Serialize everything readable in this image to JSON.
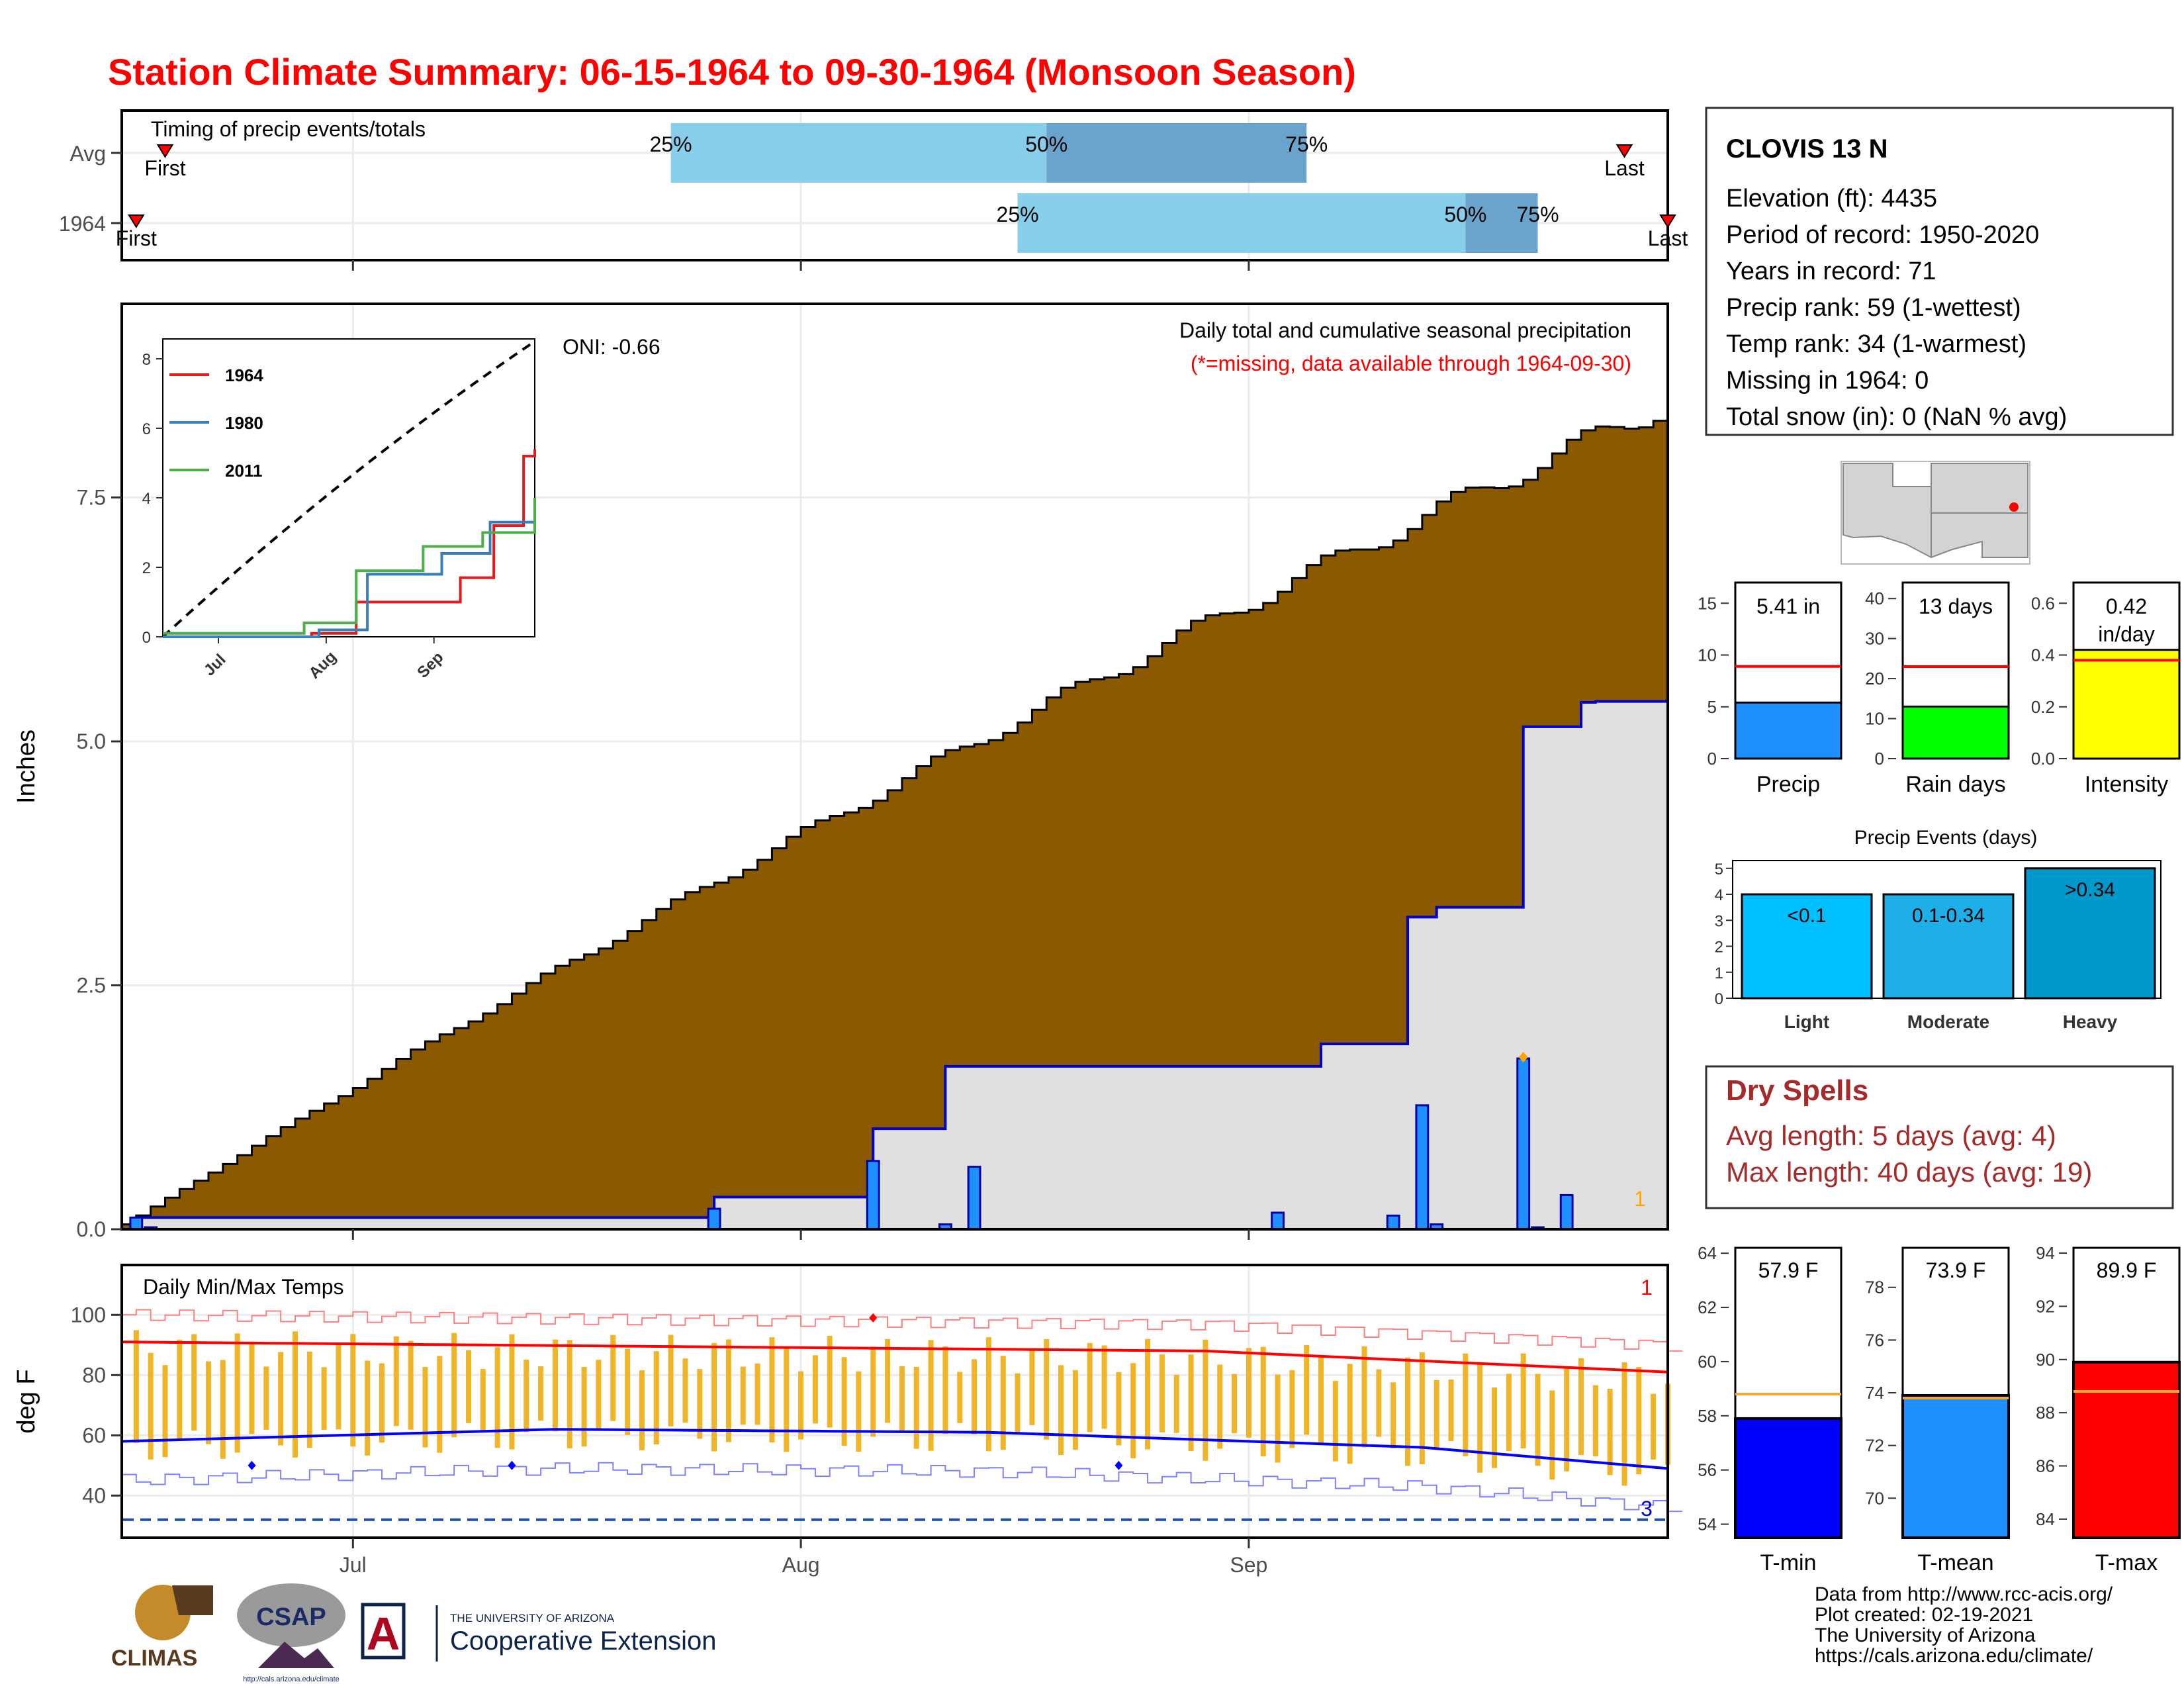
{
  "title": "Station Climate Summary: 06-15-1964 to 09-30-1964 (Monsoon Season)",
  "colors": {
    "title": "#ff0000",
    "precip_fill": "#8b5a00",
    "avg_line": "#0000cc",
    "daily_bar": "#1e90ff",
    "tmax": "#ff0000",
    "tmin": "#0000ff",
    "temp_bar": "#f0b429",
    "q_light": "#87ceeb",
    "q_dark": "#6aa4cc",
    "dry": "#a52a2a",
    "shade": "#e0e0e0"
  },
  "timing": {
    "title": "Timing of precip events/totals",
    "rows": [
      {
        "label": "Avg",
        "first_day": 3,
        "q25_day": 38,
        "q50_day": 64,
        "q75_day": 82,
        "last_day": 104
      },
      {
        "label": "1964",
        "first_day": 1,
        "q25_day": 62,
        "q50_day": 93,
        "q75_day": 98,
        "last_day": 107
      }
    ],
    "first_label": "First",
    "last_label": "Last",
    "q25_label": "25%",
    "q50_label": "50%",
    "q75_label": "75%"
  },
  "main": {
    "caption1": "Daily total and cumulative seasonal precipitation",
    "caption2": "(*=missing, data available through 1964-09-30)",
    "oni": "ONI: -0.66",
    "ylabel": "Inches",
    "ytick_labels": [
      "0.0",
      "2.5",
      "5.0",
      "7.5"
    ],
    "corner_count": "1",
    "month_labels": [
      "Jul",
      "Aug",
      "Sep"
    ]
  },
  "inset": {
    "ytick_labels": [
      "0",
      "2",
      "4",
      "6",
      "8"
    ],
    "xtick_labels": [
      "Jul",
      "Aug",
      "Sep"
    ],
    "legend": [
      {
        "name": "1964",
        "color": "#e41a1c"
      },
      {
        "name": "1980",
        "color": "#377eb8"
      },
      {
        "name": "2011",
        "color": "#4daf4a"
      }
    ]
  },
  "temps": {
    "title": "Daily Min/Max Temps",
    "ylabel": "deg F",
    "ytick_labels": [
      "40",
      "60",
      "80",
      "100"
    ],
    "count_max": "1",
    "count_min": "3",
    "month_labels": [
      "Jul",
      "Aug",
      "Sep"
    ]
  },
  "station": {
    "name": "CLOVIS 13 N",
    "lines": [
      "Elevation (ft): 4435",
      "Period of record: 1950-2020",
      "Years in record: 71",
      "Precip rank: 59 (1-wettest)",
      "Temp rank: 34 (1-warmest)",
      "Missing in 1964: 0",
      "Total snow (in): 0 (NaN % avg)"
    ]
  },
  "summary_bars": [
    {
      "label": "Precip",
      "value_text": "5.41 in",
      "value": 5.41,
      "avg": 8.9,
      "ymax": 17,
      "ticks": [
        "0",
        "5",
        "10",
        "15"
      ],
      "tick_vals": [
        0,
        5,
        10,
        15
      ],
      "color": "#1e90ff"
    },
    {
      "label": "Rain days",
      "value_text": "13 days",
      "value": 13,
      "avg": 23,
      "ymax": 44,
      "ticks": [
        "0",
        "10",
        "20",
        "30",
        "40"
      ],
      "tick_vals": [
        0,
        10,
        20,
        30,
        40
      ],
      "color": "#00ff00"
    },
    {
      "label": "Intensity",
      "value_text": "0.42\nin/day",
      "value": 0.42,
      "avg": 0.38,
      "ymax": 0.68,
      "ticks": [
        "0.0",
        "0.2",
        "0.4",
        "0.6"
      ],
      "tick_vals": [
        0,
        0.2,
        0.4,
        0.6
      ],
      "color": "#ffff00"
    }
  ],
  "events": {
    "title": "Precip Events (days)",
    "ytick_labels": [
      "0",
      "1",
      "2",
      "3",
      "4",
      "5"
    ],
    "bars": [
      {
        "label": "Light",
        "range": "<0.1",
        "value": 4,
        "color": "#00bfff"
      },
      {
        "label": "Moderate",
        "range": "0.1-0.34",
        "value": 4,
        "color": "#1eaee8"
      },
      {
        "label": "Heavy",
        "range": ">0.34",
        "value": 5,
        "color": "#0099cc"
      }
    ]
  },
  "dry_spells": {
    "title": "Dry Spells",
    "avg": "Avg length: 5 days (avg: 4)",
    "max": "Max length: 40 days (avg: 19)"
  },
  "temp_bars": [
    {
      "label": "T-min",
      "value_text": "57.9 F",
      "value": 57.9,
      "avg": 58.8,
      "ymin": 53.5,
      "ymax": 64.2,
      "ticks": [
        "54",
        "56",
        "58",
        "60",
        "62",
        "64"
      ],
      "tick_vals": [
        54,
        56,
        58,
        60,
        62,
        64
      ],
      "color": "#0000ff"
    },
    {
      "label": "T-mean",
      "value_text": "73.9 F",
      "value": 73.9,
      "avg": 73.8,
      "ymin": 68.5,
      "ymax": 79.5,
      "ticks": [
        "70",
        "72",
        "74",
        "76",
        "78"
      ],
      "tick_vals": [
        70,
        72,
        74,
        76,
        78
      ],
      "color": "#1e90ff"
    },
    {
      "label": "T-max",
      "value_text": "89.9 F",
      "value": 89.9,
      "avg": 88.8,
      "ymin": 83.3,
      "ymax": 94.2,
      "ticks": [
        "84",
        "86",
        "88",
        "90",
        "92",
        "94"
      ],
      "tick_vals": [
        84,
        86,
        88,
        90,
        92,
        94
      ],
      "color": "#ff0000"
    }
  ],
  "footer": {
    "lines": [
      "Data from http://www.rcc-acis.org/",
      "Plot created: 02-19-2021",
      "The University of Arizona",
      "https://cals.arizona.edu/climate/"
    ],
    "logo_climas": "CLIMAS",
    "logo_csap": "CSAP",
    "logo_csap_url": "http://cals.arizona.edu/climate",
    "logo_ua_small": "THE UNIVERSITY OF ARIZONA",
    "logo_ua_big": "Cooperative Extension",
    "logo_ua_letter": "A"
  },
  "chart_data": {
    "type": "area",
    "title": "Station Climate Summary: 06-15-1964 to 09-30-1964 (Monsoon Season)",
    "xlabel": "",
    "ylabel": "Inches",
    "ylim": [
      0,
      9.5
    ],
    "x_start": "1964-06-15",
    "x_end": "1964-09-30",
    "cumulative_avg_endpoints": [
      [
        0,
        0.05
      ],
      [
        107,
        8.6
      ]
    ],
    "cumulative_1964": [
      [
        0,
        0
      ],
      [
        1,
        0.12
      ],
      [
        40,
        0.12
      ],
      [
        41,
        0.33
      ],
      [
        51,
        0.33
      ],
      [
        52,
        1.03
      ],
      [
        56,
        1.03
      ],
      [
        57,
        1.67
      ],
      [
        80,
        1.67
      ],
      [
        83,
        1.9
      ],
      [
        88,
        1.9
      ],
      [
        89,
        3.2
      ],
      [
        91,
        3.3
      ],
      [
        96,
        3.3
      ],
      [
        97,
        5.15
      ],
      [
        99,
        5.15
      ],
      [
        101,
        5.4
      ],
      [
        102,
        5.41
      ],
      [
        107,
        5.41
      ]
    ],
    "daily_precip": [
      [
        1,
        0.12
      ],
      [
        2,
        0.02
      ],
      [
        41,
        0.21
      ],
      [
        52,
        0.7
      ],
      [
        57,
        0.05
      ],
      [
        59,
        0.64
      ],
      [
        80,
        0.17
      ],
      [
        88,
        0.14
      ],
      [
        90,
        1.27
      ],
      [
        91,
        0.05
      ],
      [
        97,
        1.75
      ],
      [
        98,
        0.02
      ],
      [
        100,
        0.35
      ]
    ],
    "tmax_avg_endpoints": [
      [
        0,
        91
      ],
      [
        50,
        89
      ],
      [
        75,
        88
      ],
      [
        107,
        81
      ]
    ],
    "tmin_avg_endpoints": [
      [
        0,
        58
      ],
      [
        30,
        62
      ],
      [
        60,
        61
      ],
      [
        90,
        56
      ],
      [
        107,
        49
      ]
    ],
    "inset_series": [
      {
        "name": "1964",
        "values": [
          [
            0,
            0
          ],
          [
            40,
            0.1
          ],
          [
            52,
            1.0
          ],
          [
            80,
            1.7
          ],
          [
            89,
            3.2
          ],
          [
            97,
            5.2
          ],
          [
            100,
            5.4
          ]
        ]
      },
      {
        "name": "1980",
        "values": [
          [
            0,
            0
          ],
          [
            42,
            0.2
          ],
          [
            55,
            1.8
          ],
          [
            75,
            2.4
          ],
          [
            88,
            3.3
          ],
          [
            100,
            4.0
          ]
        ]
      },
      {
        "name": "2011",
        "values": [
          [
            0,
            0.1
          ],
          [
            38,
            0.4
          ],
          [
            52,
            1.9
          ],
          [
            70,
            2.6
          ],
          [
            86,
            3.0
          ],
          [
            100,
            4.0
          ]
        ]
      }
    ]
  }
}
